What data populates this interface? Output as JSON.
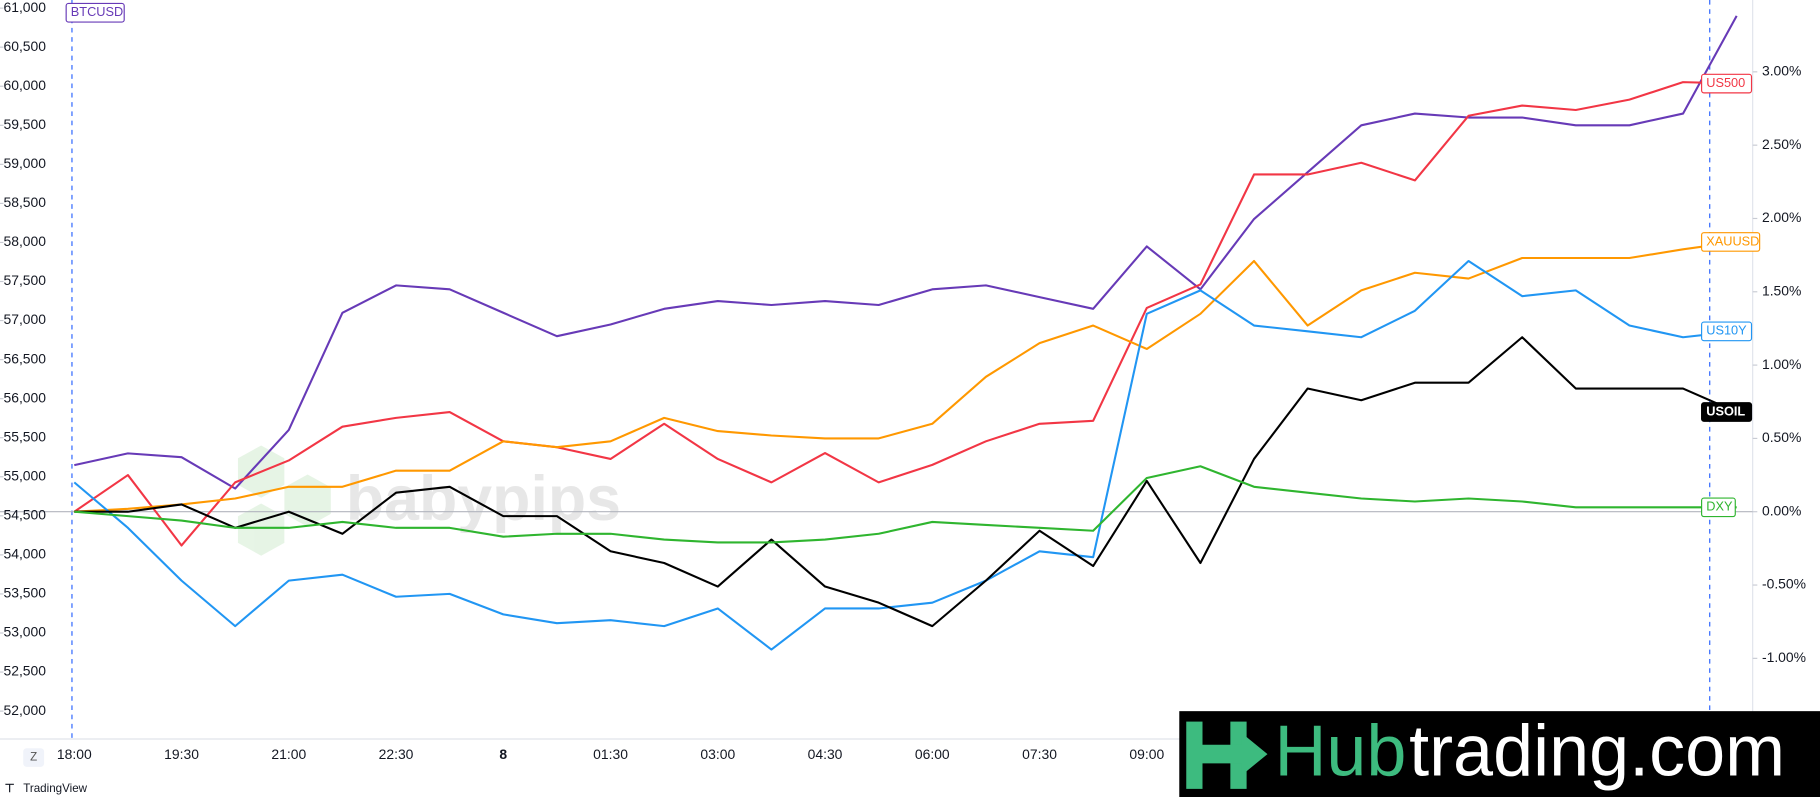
{
  "chart_data": {
    "type": "line",
    "categories": [
      "18:00",
      null,
      "19:30",
      null,
      "21:00",
      null,
      "22:30",
      null,
      "8",
      null,
      "01:30",
      null,
      "03:00",
      null,
      "04:30",
      null,
      "06:00",
      null,
      "07:30",
      null,
      "09:00",
      null,
      null,
      null,
      null,
      null,
      null,
      null,
      null,
      null,
      null,
      null
    ],
    "ylim": [
      51643,
      61104
    ],
    "yticks": [
      {
        "value": 52000,
        "label": "52,000"
      },
      {
        "value": 52500,
        "label": "52,500"
      },
      {
        "value": 53000,
        "label": "53,000"
      },
      {
        "value": 53500,
        "label": "53,500"
      },
      {
        "value": 54000,
        "label": "54,000"
      },
      {
        "value": 54500,
        "label": "54,500"
      },
      {
        "value": 55000,
        "label": "55,000"
      },
      {
        "value": 55500,
        "label": "55,500"
      },
      {
        "value": 56000,
        "label": "56,000"
      },
      {
        "value": 56500,
        "label": "56,500"
      },
      {
        "value": 57000,
        "label": "57,000"
      },
      {
        "value": 57500,
        "label": "57,500"
      },
      {
        "value": 58000,
        "label": "58,000"
      },
      {
        "value": 58500,
        "label": "58,500"
      },
      {
        "value": 59000,
        "label": "59,000"
      },
      {
        "value": 59500,
        "label": "59,500"
      },
      {
        "value": 60000,
        "label": "60,000"
      },
      {
        "value": 60500,
        "label": "60,500"
      },
      {
        "value": 61000,
        "label": "61,000"
      }
    ],
    "y2lim": [
      -1.55,
      3.49
    ],
    "y2ticks": [
      {
        "value": -1,
        "label": "-1.00%"
      },
      {
        "value": -0.5,
        "label": "-0.50%"
      },
      {
        "value": 0,
        "label": "0.00%"
      },
      {
        "value": 0.5,
        "label": "0.50%"
      },
      {
        "value": 1,
        "label": "1.00%"
      },
      {
        "value": 1.5,
        "label": "1.50%"
      },
      {
        "value": 2,
        "label": "2.00%"
      },
      {
        "value": 2.5,
        "label": "2.50%"
      },
      {
        "value": 3,
        "label": "3.00%"
      }
    ],
    "y2_reference_line": 0,
    "grid": false,
    "series": [
      {
        "name": "BTCUSD",
        "color": "#673ab7",
        "values": [
          55150,
          55300,
          55250,
          54850,
          55600,
          57100,
          57450,
          57400,
          57100,
          56800,
          56950,
          57150,
          57250,
          57200,
          57250,
          57200,
          57400,
          57450,
          57300,
          57150,
          57950,
          57400,
          58300,
          58900,
          59500,
          59650,
          59600,
          59600,
          59500,
          59500,
          59650,
          60900
        ]
      },
      {
        "name": "US500",
        "color": "#f23645",
        "axis": "y2",
        "values": [
          0,
          0.25,
          -0.23,
          0.2,
          0.35,
          0.58,
          0.64,
          0.68,
          0.48,
          0.44,
          0.36,
          0.6,
          0.36,
          0.2,
          0.4,
          0.2,
          0.32,
          0.48,
          0.6,
          0.62,
          1.39,
          1.55,
          2.3,
          2.3,
          2.38,
          2.26,
          2.7,
          2.77,
          2.74,
          2.81,
          2.93,
          2.92
        ]
      },
      {
        "name": "XAUUSD",
        "color": "#ff9800",
        "axis": "y2",
        "values": [
          0,
          0.02,
          0.05,
          0.09,
          0.17,
          0.17,
          0.28,
          0.28,
          0.48,
          0.44,
          0.48,
          0.64,
          0.55,
          0.52,
          0.5,
          0.5,
          0.6,
          0.92,
          1.15,
          1.27,
          1.11,
          1.35,
          1.71,
          1.27,
          1.51,
          1.63,
          1.59,
          1.73,
          1.73,
          1.73,
          1.79,
          1.84
        ]
      },
      {
        "name": "US10Y",
        "color": "#2196f3",
        "axis": "y2",
        "values": [
          0.2,
          -0.11,
          -0.47,
          -0.78,
          -0.47,
          -0.43,
          -0.58,
          -0.56,
          -0.7,
          -0.76,
          -0.74,
          -0.78,
          -0.66,
          -0.94,
          -0.66,
          -0.66,
          -0.62,
          -0.47,
          -0.27,
          -0.31,
          1.35,
          1.51,
          1.27,
          1.23,
          1.19,
          1.37,
          1.71,
          1.47,
          1.51,
          1.27,
          1.19,
          1.23
        ]
      },
      {
        "name": "USOIL",
        "color": "#000000",
        "axis": "y2",
        "values": [
          0,
          0,
          0.05,
          -0.11,
          0,
          -0.15,
          0.13,
          0.17,
          -0.03,
          -0.03,
          -0.27,
          -0.35,
          -0.51,
          -0.19,
          -0.51,
          -0.62,
          -0.78,
          -0.47,
          -0.13,
          -0.37,
          0.21,
          -0.35,
          0.36,
          0.84,
          0.76,
          0.88,
          0.88,
          1.19,
          0.84,
          0.84,
          0.84,
          0.68
        ]
      },
      {
        "name": "DXY",
        "color": "#2fb52f",
        "axis": "y2",
        "values": [
          0,
          -0.03,
          -0.06,
          -0.11,
          -0.11,
          -0.07,
          -0.11,
          -0.11,
          -0.17,
          -0.15,
          -0.15,
          -0.19,
          -0.21,
          -0.21,
          -0.19,
          -0.15,
          -0.07,
          -0.09,
          -0.11,
          -0.13,
          0.23,
          0.31,
          0.17,
          0.13,
          0.09,
          0.07,
          0.09,
          0.07,
          0.03,
          0.03,
          0.03,
          0.03
        ]
      }
    ]
  },
  "toolbar": {
    "zoom_button": "Z",
    "brand": "TradingView"
  },
  "watermark": "babypips",
  "logo": {
    "part1": "Hub",
    "part2": "trading.com"
  }
}
